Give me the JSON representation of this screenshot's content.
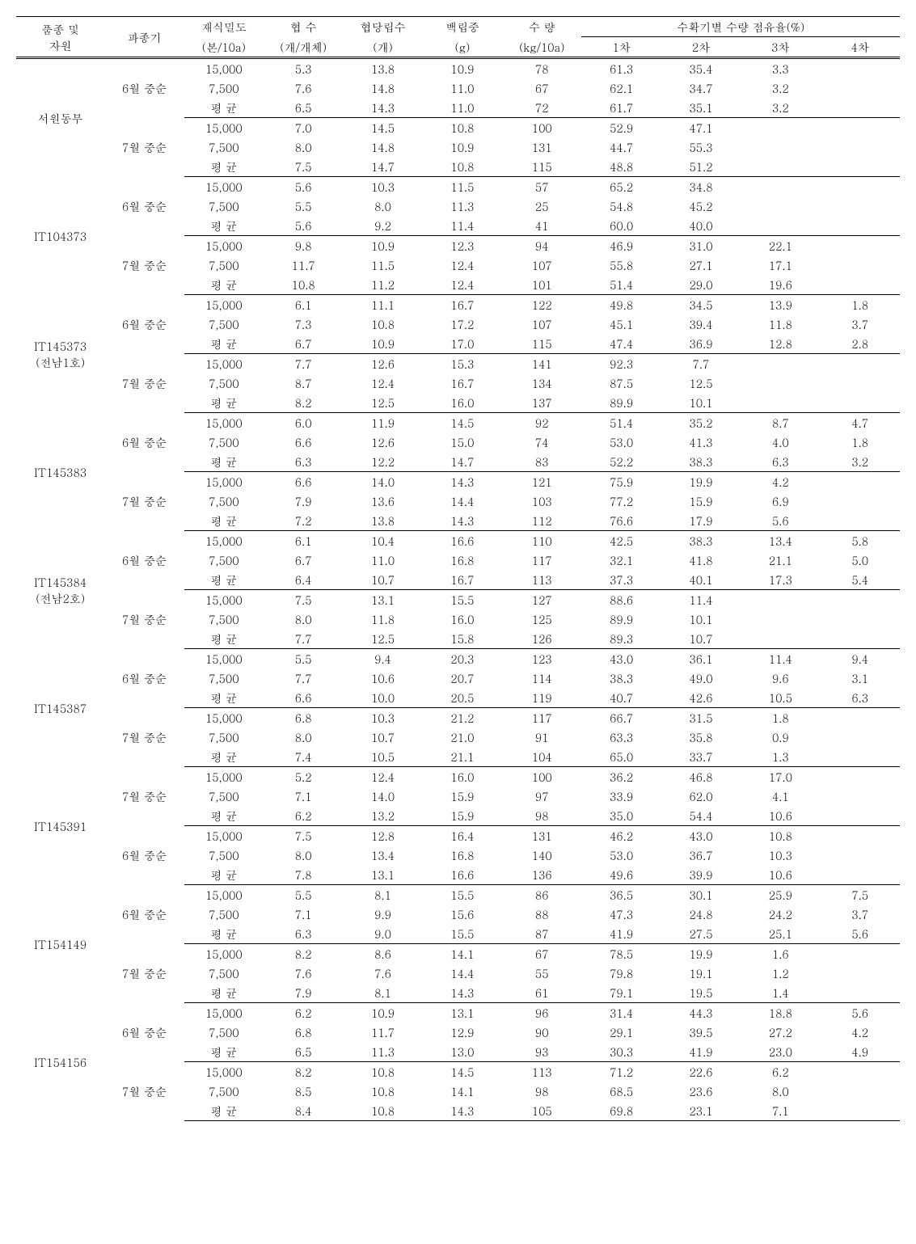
{
  "header": {
    "variety": "품종 및\n자원",
    "sowing": "파종기",
    "density": "재식밀도",
    "density_unit": "(본/10a)",
    "pods": "협  수",
    "pods_unit": "(개/개체)",
    "seedsPerPod": "협당립수",
    "seedsPerPod_unit": "(개)",
    "weight100": "백립중",
    "weight100_unit": "(g)",
    "yield": "수  량",
    "yield_unit": "(kg/10a)",
    "harvestShare": "수확기별 수량 점유율(%)",
    "h1": "1차",
    "h2": "2차",
    "h3": "3차",
    "h4": "4차"
  },
  "labels": {
    "avg": "평  균",
    "d15000": "15,000",
    "d7500": "7,500",
    "jun": "6월 중순",
    "jul": "7월 중순"
  },
  "varieties": [
    {
      "name": "서원동부",
      "blocks": [
        {
          "sowing": "jun",
          "rows": [
            {
              "d": "d15000",
              "v": [
                "5.3",
                "13.8",
                "10.9",
                "78",
                "61.3",
                "35.4",
                "3.3",
                ""
              ]
            },
            {
              "d": "d7500",
              "v": [
                "7.6",
                "14.8",
                "11.0",
                "67",
                "62.1",
                "34.7",
                "3.2",
                ""
              ]
            },
            {
              "d": "avg",
              "v": [
                "6.5",
                "14.3",
                "11.0",
                "72",
                "61.7",
                "35.1",
                "3.2",
                ""
              ]
            }
          ]
        },
        {
          "sowing": "jul",
          "rows": [
            {
              "d": "d15000",
              "v": [
                "7.0",
                "14.5",
                "10.8",
                "100",
                "52.9",
                "47.1",
                "",
                ""
              ]
            },
            {
              "d": "d7500",
              "v": [
                "8.0",
                "14.8",
                "10.9",
                "131",
                "44.7",
                "55.3",
                "",
                ""
              ]
            },
            {
              "d": "avg",
              "v": [
                "7.5",
                "14.7",
                "10.8",
                "115",
                "48.8",
                "51.2",
                "",
                ""
              ]
            }
          ]
        }
      ]
    },
    {
      "name": "IT104373",
      "blocks": [
        {
          "sowing": "jun",
          "rows": [
            {
              "d": "d15000",
              "v": [
                "5.6",
                "10.3",
                "11.5",
                "57",
                "65.2",
                "34.8",
                "",
                ""
              ]
            },
            {
              "d": "d7500",
              "v": [
                "5.5",
                "8.0",
                "11.3",
                "25",
                "54.8",
                "45.2",
                "",
                ""
              ]
            },
            {
              "d": "avg",
              "v": [
                "5.6",
                "9.2",
                "11.4",
                "41",
                "60.0",
                "40.0",
                "",
                ""
              ]
            }
          ]
        },
        {
          "sowing": "jul",
          "rows": [
            {
              "d": "d15000",
              "v": [
                "9.8",
                "10.9",
                "12.3",
                "94",
                "46.9",
                "31.0",
                "22.1",
                ""
              ]
            },
            {
              "d": "d7500",
              "v": [
                "11.7",
                "11.5",
                "12.4",
                "107",
                "55.8",
                "27.1",
                "17.1",
                ""
              ]
            },
            {
              "d": "avg",
              "v": [
                "10.8",
                "11.2",
                "12.4",
                "101",
                "51.4",
                "29.0",
                "19.6",
                ""
              ]
            }
          ]
        }
      ]
    },
    {
      "name": "IT145373\n(전남1호)",
      "blocks": [
        {
          "sowing": "jun",
          "rows": [
            {
              "d": "d15000",
              "v": [
                "6.1",
                "11.1",
                "16.7",
                "122",
                "49.8",
                "34.5",
                "13.9",
                "1.8"
              ]
            },
            {
              "d": "d7500",
              "v": [
                "7.3",
                "10.8",
                "17.2",
                "107",
                "45.1",
                "39.4",
                "11.8",
                "3.7"
              ]
            },
            {
              "d": "avg",
              "v": [
                "6.7",
                "10.9",
                "17.0",
                "115",
                "47.4",
                "36.9",
                "12.8",
                "2.8"
              ]
            }
          ]
        },
        {
          "sowing": "jul",
          "rows": [
            {
              "d": "d15000",
              "v": [
                "7.7",
                "12.6",
                "15.3",
                "141",
                "92.3",
                "7.7",
                "",
                ""
              ]
            },
            {
              "d": "d7500",
              "v": [
                "8.7",
                "12.4",
                "16.7",
                "134",
                "87.5",
                "12.5",
                "",
                ""
              ]
            },
            {
              "d": "avg",
              "v": [
                "8.2",
                "12.5",
                "16.0",
                "137",
                "89.9",
                "10.1",
                "",
                ""
              ]
            }
          ]
        }
      ]
    },
    {
      "name": "IT145383",
      "blocks": [
        {
          "sowing": "jun",
          "rows": [
            {
              "d": "d15000",
              "v": [
                "6.0",
                "11.9",
                "14.5",
                "92",
                "51.4",
                "35.2",
                "8.7",
                "4.7"
              ]
            },
            {
              "d": "d7500",
              "v": [
                "6.6",
                "12.6",
                "15.0",
                "74",
                "53.0",
                "41.3",
                "4.0",
                "1.8"
              ]
            },
            {
              "d": "avg",
              "v": [
                "6.3",
                "12.2",
                "14.7",
                "83",
                "52.2",
                "38.3",
                "6.3",
                "3.2"
              ]
            }
          ]
        },
        {
          "sowing": "jul",
          "rows": [
            {
              "d": "d15000",
              "v": [
                "6.6",
                "14.0",
                "14.3",
                "121",
                "75.9",
                "19.9",
                "4.2",
                ""
              ]
            },
            {
              "d": "d7500",
              "v": [
                "7.9",
                "13.6",
                "14.4",
                "103",
                "77.2",
                "15.9",
                "6.9",
                ""
              ]
            },
            {
              "d": "avg",
              "v": [
                "7.2",
                "13.8",
                "14.3",
                "112",
                "76.6",
                "17.9",
                "5.6",
                ""
              ]
            }
          ]
        }
      ]
    },
    {
      "name": "IT145384\n(전남2호)",
      "blocks": [
        {
          "sowing": "jun",
          "rows": [
            {
              "d": "d15000",
              "v": [
                "6.1",
                "10.4",
                "16.6",
                "110",
                "42.5",
                "38.3",
                "13.4",
                "5.8"
              ]
            },
            {
              "d": "d7500",
              "v": [
                "6.7",
                "11.0",
                "16.8",
                "117",
                "32.1",
                "41.8",
                "21.1",
                "5.0"
              ]
            },
            {
              "d": "avg",
              "v": [
                "6.4",
                "10.7",
                "16.7",
                "113",
                "37.3",
                "40.1",
                "17.3",
                "5.4"
              ]
            }
          ]
        },
        {
          "sowing": "jul",
          "rows": [
            {
              "d": "d15000",
              "v": [
                "7.5",
                "13.1",
                "15.5",
                "127",
                "88.6",
                "11.4",
                "",
                ""
              ]
            },
            {
              "d": "d7500",
              "v": [
                "8.0",
                "11.8",
                "16.0",
                "125",
                "89.9",
                "10.1",
                "",
                ""
              ]
            },
            {
              "d": "avg",
              "v": [
                "7.7",
                "12.5",
                "15.8",
                "126",
                "89.3",
                "10.7",
                "",
                ""
              ]
            }
          ]
        }
      ]
    },
    {
      "name": "IT145387",
      "blocks": [
        {
          "sowing": "jun",
          "rows": [
            {
              "d": "d15000",
              "v": [
                "5.5",
                "9.4",
                "20.3",
                "123",
                "43.0",
                "36.1",
                "11.4",
                "9.4"
              ]
            },
            {
              "d": "d7500",
              "v": [
                "7.7",
                "10.6",
                "20.7",
                "114",
                "38.3",
                "49.0",
                "9.6",
                "3.1"
              ]
            },
            {
              "d": "avg",
              "v": [
                "6.6",
                "10.0",
                "20.5",
                "119",
                "40.7",
                "42.6",
                "10.5",
                "6.3"
              ]
            }
          ]
        },
        {
          "sowing": "jul",
          "rows": [
            {
              "d": "d15000",
              "v": [
                "6.8",
                "10.3",
                "21.2",
                "117",
                "66.7",
                "31.5",
                "1.8",
                ""
              ]
            },
            {
              "d": "d7500",
              "v": [
                "8.0",
                "10.7",
                "21.0",
                "91",
                "63.3",
                "35.8",
                "0.9",
                ""
              ]
            },
            {
              "d": "avg",
              "v": [
                "7.4",
                "10.5",
                "21.1",
                "104",
                "65.0",
                "33.7",
                "1.3",
                ""
              ]
            }
          ]
        }
      ]
    },
    {
      "name": "IT145391",
      "blocks": [
        {
          "sowing": "jul",
          "rows": [
            {
              "d": "d15000",
              "v": [
                "5.2",
                "12.4",
                "16.0",
                "100",
                "36.2",
                "46.8",
                "17.0",
                ""
              ]
            },
            {
              "d": "d7500",
              "v": [
                "7.1",
                "14.0",
                "15.9",
                "97",
                "33.9",
                "62.0",
                "4.1",
                ""
              ]
            },
            {
              "d": "avg",
              "v": [
                "6.2",
                "13.2",
                "15.9",
                "98",
                "35.0",
                "54.4",
                "10.6",
                ""
              ]
            }
          ]
        },
        {
          "sowing": "jun",
          "rows": [
            {
              "d": "d15000",
              "v": [
                "7.5",
                "12.8",
                "16.4",
                "131",
                "46.2",
                "43.0",
                "10.8",
                ""
              ]
            },
            {
              "d": "d7500",
              "v": [
                "8.0",
                "13.4",
                "16.8",
                "140",
                "53.0",
                "36.7",
                "10.3",
                ""
              ]
            },
            {
              "d": "avg",
              "v": [
                "7.8",
                "13.1",
                "16.6",
                "136",
                "49.6",
                "39.9",
                "10.6",
                ""
              ]
            }
          ]
        }
      ]
    },
    {
      "name": "IT154149",
      "blocks": [
        {
          "sowing": "jun",
          "rows": [
            {
              "d": "d15000",
              "v": [
                "5.5",
                "8.1",
                "15.5",
                "86",
                "36.5",
                "30.1",
                "25.9",
                "7.5"
              ]
            },
            {
              "d": "d7500",
              "v": [
                "7.1",
                "9.9",
                "15.6",
                "88",
                "47.3",
                "24.8",
                "24.2",
                "3.7"
              ]
            },
            {
              "d": "avg",
              "v": [
                "6.3",
                "9.0",
                "15.5",
                "87",
                "41.9",
                "27.5",
                "25.1",
                "5.6"
              ]
            }
          ]
        },
        {
          "sowing": "jul",
          "rows": [
            {
              "d": "d15000",
              "v": [
                "8.2",
                "8.6",
                "14.1",
                "67",
                "78.5",
                "19.9",
                "1.6",
                ""
              ]
            },
            {
              "d": "d7500",
              "v": [
                "7.6",
                "7.6",
                "14.4",
                "55",
                "79.8",
                "19.1",
                "1.2",
                ""
              ]
            },
            {
              "d": "avg",
              "v": [
                "7.9",
                "8.1",
                "14.3",
                "61",
                "79.1",
                "19.5",
                "1.4",
                ""
              ]
            }
          ]
        }
      ]
    },
    {
      "name": "IT154156",
      "blocks": [
        {
          "sowing": "jun",
          "rows": [
            {
              "d": "d15000",
              "v": [
                "6.2",
                "10.9",
                "13.1",
                "96",
                "31.4",
                "44.3",
                "18.8",
                "5.6"
              ]
            },
            {
              "d": "d7500",
              "v": [
                "6.8",
                "11.7",
                "12.9",
                "90",
                "29.1",
                "39.5",
                "27.2",
                "4.2"
              ]
            },
            {
              "d": "avg",
              "v": [
                "6.5",
                "11.3",
                "13.0",
                "93",
                "30.3",
                "41.9",
                "23.0",
                "4.9"
              ]
            }
          ]
        },
        {
          "sowing": "jul",
          "rows": [
            {
              "d": "d15000",
              "v": [
                "8.2",
                "10.8",
                "14.5",
                "113",
                "71.2",
                "22.6",
                "6.2",
                ""
              ]
            },
            {
              "d": "d7500",
              "v": [
                "8.5",
                "10.8",
                "14.1",
                "98",
                "68.5",
                "23.6",
                "8.0",
                ""
              ]
            },
            {
              "d": "avg",
              "v": [
                "8.4",
                "10.8",
                "14.3",
                "105",
                "69.8",
                "23.1",
                "7.1",
                ""
              ]
            }
          ]
        }
      ]
    }
  ]
}
